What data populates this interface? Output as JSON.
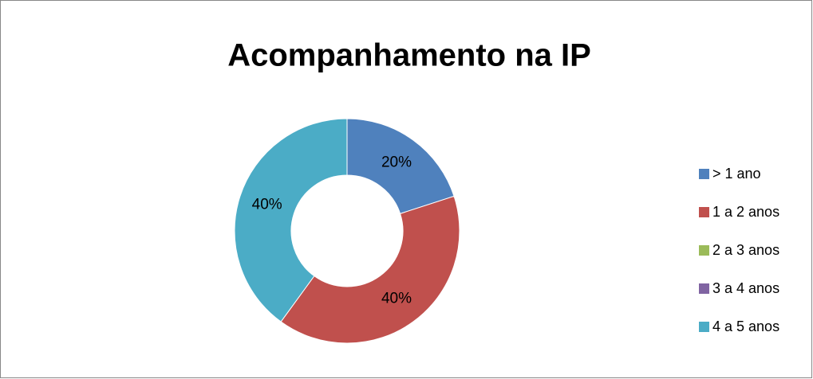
{
  "chart_data": {
    "type": "donut",
    "title": "Acompanhamento na IP",
    "categories": [
      "> 1 ano",
      "1 a 2 anos",
      "2 a 3 anos",
      "3 a 4 anos",
      "4 a 5 anos"
    ],
    "values": [
      20,
      40,
      0,
      0,
      40
    ],
    "value_labels": [
      "20%",
      "40%",
      null,
      null,
      "40%"
    ],
    "colors": [
      "#4f81bd",
      "#c0504d",
      "#9bbb59",
      "#8064a2",
      "#4bacc6"
    ],
    "legend": "right"
  }
}
